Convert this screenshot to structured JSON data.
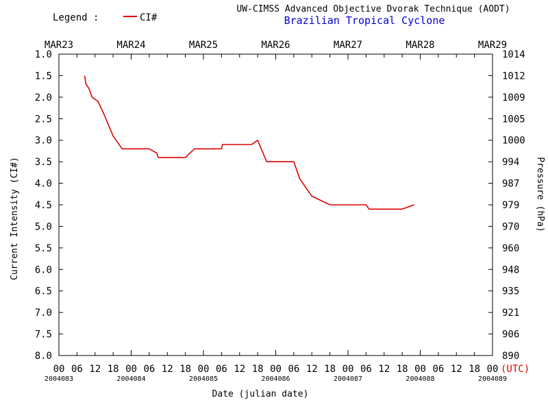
{
  "header": {
    "legend_label": "Legend :",
    "legend_series": "CI#",
    "title": "UW-CIMSS Advanced Objective Dvorak Technique (AODT)",
    "subtitle": "Brazilian Tropical Cyclone"
  },
  "colors": {
    "series": "#dd0000",
    "subtitle": "#0000cc",
    "utc": "#dd0000",
    "text": "#000000"
  },
  "chart_data": {
    "type": "line",
    "title": "UW-CIMSS Advanced Objective Dvorak Technique (AODT)",
    "subtitle": "Brazilian Tropical Cyclone",
    "xlabel": "Date (julian date)",
    "ylabel": "Current Intensity (CI#)",
    "ylabel_right": "Pressure (hPa)",
    "x_unit_label": "(UTC)",
    "xlim": [
      "MAR23 00",
      "MAR29 00"
    ],
    "ylim": [
      1.0,
      8.0
    ],
    "y_inverted": true,
    "grid": false,
    "legend": "top-left",
    "top_day_labels": [
      "MAR23",
      "MAR24",
      "MAR25",
      "MAR26",
      "MAR27",
      "MAR28",
      "MAR29"
    ],
    "bottom_hour_labels": [
      "00",
      "06",
      "12",
      "18",
      "00",
      "06",
      "12",
      "18",
      "00",
      "06",
      "12",
      "18",
      "00",
      "06",
      "12",
      "18",
      "00",
      "06",
      "12",
      "18",
      "00",
      "06",
      "12",
      "18",
      "00"
    ],
    "julian_labels": [
      "2004083",
      "2004084",
      "2004085",
      "2004086",
      "2004087",
      "2004088",
      "2004089"
    ],
    "y_ticks": [
      "1.0",
      "1.5",
      "2.0",
      "2.5",
      "3.0",
      "3.5",
      "4.0",
      "4.5",
      "5.0",
      "5.5",
      "6.0",
      "6.5",
      "7.0",
      "7.5",
      "8.0"
    ],
    "pressure_ticks": [
      "1014",
      "1012",
      "1009",
      "1005",
      "1000",
      "994",
      "987",
      "979",
      "970",
      "960",
      "948",
      "935",
      "921",
      "906",
      "890"
    ],
    "series": [
      {
        "name": "CI#",
        "x_hours": [
          8.5,
          9,
          10,
          11,
          13,
          15,
          18,
          21,
          24,
          30,
          32.5,
          33,
          36,
          42,
          45,
          48,
          54,
          54.3,
          57,
          60,
          64,
          66,
          69,
          72,
          73,
          78,
          79,
          80,
          81,
          84,
          90,
          96,
          102,
          103,
          108,
          114,
          118
        ],
        "values": [
          1.5,
          1.7,
          1.8,
          2.0,
          2.1,
          2.4,
          2.9,
          3.2,
          3.2,
          3.2,
          3.3,
          3.4,
          3.4,
          3.4,
          3.2,
          3.2,
          3.2,
          3.1,
          3.1,
          3.1,
          3.1,
          3.0,
          3.5,
          3.5,
          3.5,
          3.5,
          3.7,
          3.9,
          4.0,
          4.3,
          4.5,
          4.5,
          4.5,
          4.6,
          4.6,
          4.6,
          4.5
        ]
      }
    ]
  }
}
